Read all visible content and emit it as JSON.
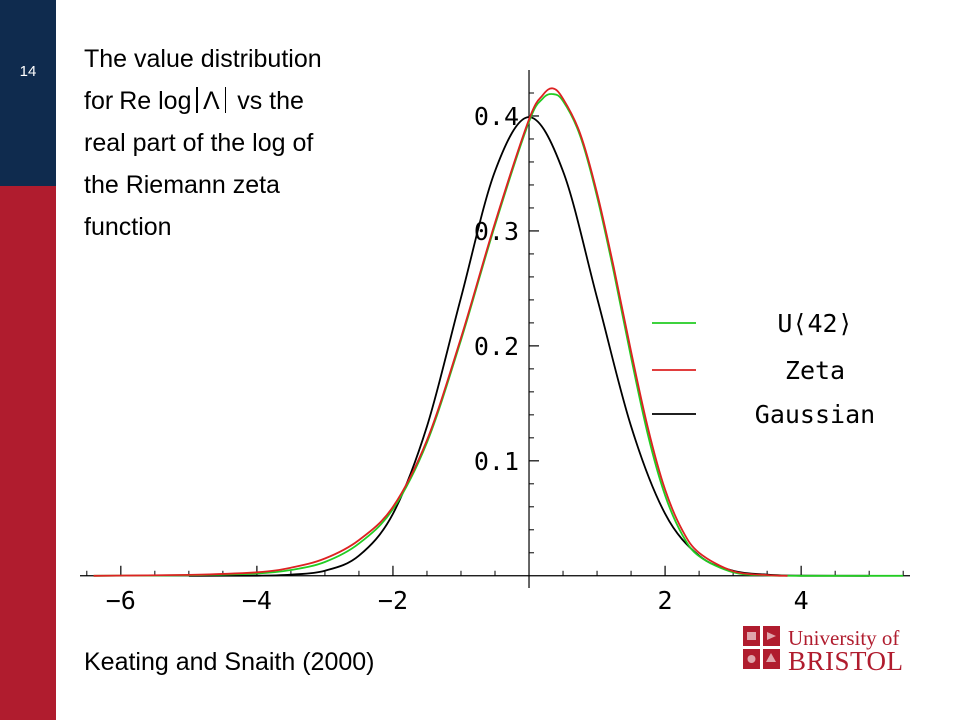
{
  "slide": {
    "number": "14",
    "description": [
      "The value distribution",
      "for",
      "vs the",
      "real part of the log of",
      "the Riemann zeta",
      "function"
    ],
    "formula": {
      "re": "Re",
      "log": "log",
      "symbol": "Λ"
    },
    "citation": "Keating and Snaith (2000)"
  },
  "logo": {
    "line1": "University of",
    "line2": "BRISTOL"
  },
  "chart_data": {
    "type": "line",
    "title": "",
    "xlabel": "",
    "ylabel": "",
    "xlim": [
      -6.6,
      5.6
    ],
    "ylim": [
      -0.0002,
      0.44
    ],
    "xticks": [
      -6,
      -4,
      -2,
      2,
      4
    ],
    "xtick_labels": [
      "−6",
      "−4",
      "−2",
      "2",
      "4"
    ],
    "yticks": [
      0.1,
      0.2,
      0.3,
      0.4
    ],
    "ytick_labels": [
      "0.1",
      "0.2",
      "0.3",
      "0.4"
    ],
    "grid": false,
    "legend_position": "right",
    "series": [
      {
        "name": "U⟨42⟩",
        "color": "#22cc22",
        "x": [
          -6.4,
          -5,
          -4,
          -3.5,
          -3,
          -2.5,
          -2,
          -1.5,
          -1,
          -0.5,
          0,
          0.2,
          0.35,
          0.5,
          0.75,
          1,
          1.25,
          1.5,
          1.75,
          2,
          2.25,
          2.5,
          3,
          3.5,
          4,
          5.5
        ],
        "y": [
          0,
          0.0005,
          0.002,
          0.005,
          0.012,
          0.028,
          0.058,
          0.116,
          0.205,
          0.305,
          0.395,
          0.415,
          0.419,
          0.413,
          0.383,
          0.33,
          0.263,
          0.19,
          0.122,
          0.07,
          0.036,
          0.017,
          0.003,
          0.0004,
          0,
          0
        ]
      },
      {
        "name": "Zeta",
        "color": "#dd2222",
        "x": [
          -6.4,
          -5,
          -4,
          -3.5,
          -3,
          -2.5,
          -2,
          -1.5,
          -1,
          -0.5,
          0,
          0.2,
          0.35,
          0.5,
          0.75,
          1,
          1.25,
          1.5,
          1.75,
          2,
          2.25,
          2.5,
          3,
          3.5,
          3.8
        ],
        "y": [
          0,
          0.0008,
          0.003,
          0.007,
          0.015,
          0.031,
          0.06,
          0.118,
          0.207,
          0.307,
          0.397,
          0.418,
          0.424,
          0.415,
          0.385,
          0.333,
          0.267,
          0.195,
          0.128,
          0.075,
          0.04,
          0.02,
          0.004,
          0.0006,
          0
        ]
      },
      {
        "name": "Gaussian",
        "color": "#000000",
        "x": [
          -5,
          -4,
          -3.5,
          -3,
          -2.5,
          -2,
          -1.5,
          -1,
          -0.5,
          0,
          0.5,
          1,
          1.5,
          2,
          2.5,
          3,
          3.5,
          4,
          5
        ],
        "y": [
          0,
          0.0001,
          0.001,
          0.0044,
          0.0175,
          0.054,
          0.13,
          0.242,
          0.352,
          0.399,
          0.352,
          0.242,
          0.13,
          0.054,
          0.0175,
          0.0044,
          0.001,
          0.0001,
          0
        ]
      }
    ]
  }
}
